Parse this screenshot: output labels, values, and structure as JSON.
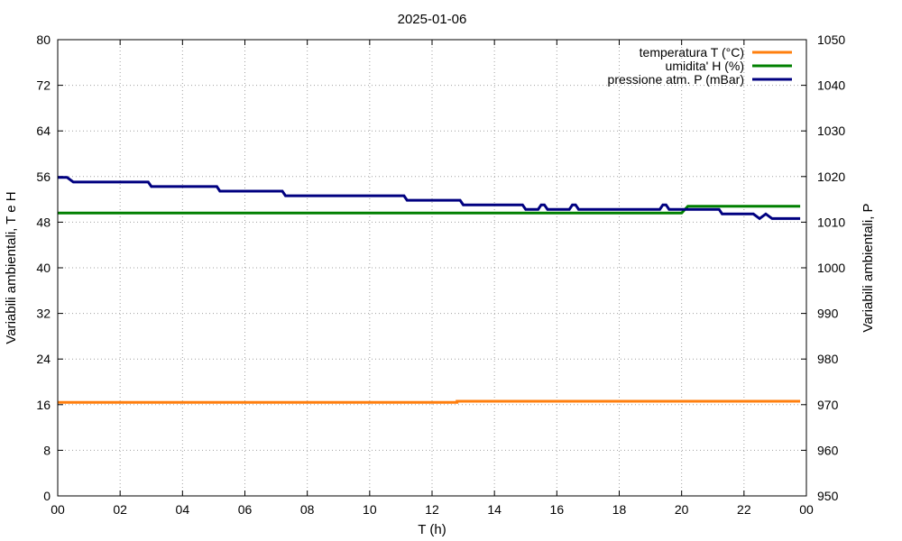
{
  "chart_data": {
    "type": "line",
    "title": "2025-01-06",
    "xlabel": "T (h)",
    "ylabel_left": "Variabili ambientali, T e H",
    "ylabel_right": "Variabili ambientali, P",
    "x_ticks": [
      "00",
      "02",
      "04",
      "06",
      "08",
      "10",
      "12",
      "14",
      "16",
      "18",
      "20",
      "22",
      "00"
    ],
    "xlim": [
      0,
      24
    ],
    "ylim_left": [
      0,
      80
    ],
    "ylim_right": [
      950,
      1050
    ],
    "y_left_ticks": [
      "0",
      "8",
      "16",
      "24",
      "32",
      "40",
      "48",
      "56",
      "64",
      "72",
      "80"
    ],
    "y_right_ticks": [
      "950",
      "960",
      "970",
      "980",
      "990",
      "1000",
      "1010",
      "1020",
      "1030",
      "1040",
      "1050"
    ],
    "grid": true,
    "legend_position": "top-right",
    "series": [
      {
        "name": "temperatura T (°C)",
        "color": "#ff7f0e",
        "axis": "left",
        "x": [
          0,
          12.8,
          12.8,
          23.8
        ],
        "y": [
          16.4,
          16.4,
          16.6,
          16.6
        ]
      },
      {
        "name": "umidita' H (%)",
        "color": "#008000",
        "axis": "left",
        "x": [
          0,
          20.0,
          20.2,
          23.8
        ],
        "y": [
          49.6,
          49.6,
          50.8,
          50.8
        ]
      },
      {
        "name": "pressione atm. P (mBar)",
        "color": "#000080",
        "axis": "right",
        "x": [
          0,
          0.3,
          0.5,
          2.9,
          3.0,
          5.1,
          5.2,
          7.2,
          7.3,
          11.1,
          11.2,
          12.9,
          13.0,
          14.9,
          15.0,
          15.4,
          15.5,
          15.6,
          15.7,
          16.4,
          16.5,
          16.6,
          16.7,
          19.3,
          19.4,
          19.5,
          19.6,
          20.0,
          20.1,
          21.2,
          21.3,
          22.3,
          22.5,
          22.7,
          22.9,
          23.8
        ],
        "y": [
          1019.8,
          1019.8,
          1018.8,
          1018.8,
          1017.8,
          1017.8,
          1016.8,
          1016.8,
          1015.8,
          1015.8,
          1014.8,
          1014.8,
          1013.8,
          1013.8,
          1012.8,
          1012.8,
          1013.8,
          1013.8,
          1012.8,
          1012.8,
          1013.8,
          1013.8,
          1012.8,
          1012.8,
          1013.8,
          1013.8,
          1012.8,
          1012.8,
          1012.8,
          1012.8,
          1011.8,
          1011.8,
          1010.8,
          1011.8,
          1010.8,
          1010.8
        ]
      }
    ]
  }
}
